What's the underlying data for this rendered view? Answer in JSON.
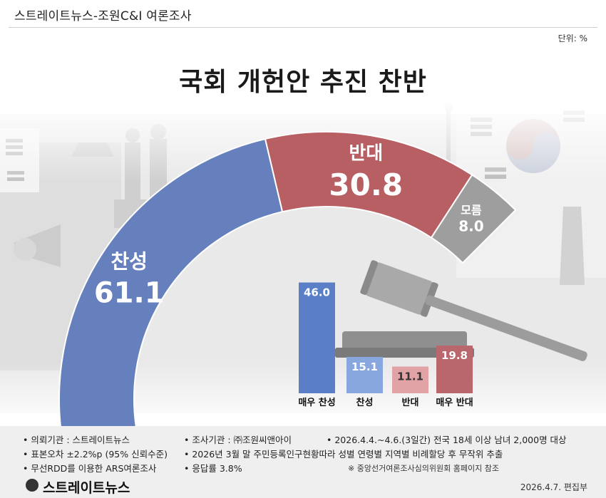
{
  "header": {
    "title": "스트레이트뉴스-조원C&I 여론조사"
  },
  "unit": "단위: %",
  "title": "국회 개헌안 추진 찬반",
  "chart_data": [
    {
      "type": "pie",
      "style": "semi-donut",
      "segments": [
        {
          "label": "찬성",
          "value": 61.1,
          "color": "#6680bd"
        },
        {
          "label": "반대",
          "value": 30.8,
          "color": "#b85f63"
        },
        {
          "label": "모름",
          "value": 8.0,
          "color": "#9e9e9e"
        }
      ],
      "value_labels": [
        "61.1",
        "30.8",
        "8.0"
      ]
    },
    {
      "type": "bar",
      "categories": [
        "매우 찬성",
        "찬성",
        "반대",
        "매우 반대"
      ],
      "values": [
        46.0,
        15.1,
        11.1,
        19.8
      ],
      "value_labels": [
        "46.0",
        "15.1",
        "11.1",
        "19.8"
      ],
      "colors": [
        "#5a7fc6",
        "#89a7df",
        "#e2a3a7",
        "#b9676c"
      ]
    }
  ],
  "footer": {
    "lines": [
      "• 의뢰기관 : 스트레이트뉴스",
      "• 조사기관 : ㈜조원씨앤아이",
      "• 2026.4.4.~4.6.(3일간) 전국 18세 이상 남녀 2,000명 대상",
      "• 표본오차 ±2.2%p (95% 신뢰수준)",
      "• 2026년 3월 말 주민등록인구현황따라 성별 연령별 지역별 비례할당 후 무작위 추출",
      "• 무선RDD를 이용한 ARS여론조사",
      "• 응답률 3.8%",
      "※ 중앙선거여론조사심의위원회 홈페이지 참조"
    ],
    "brand": "스트레이트뉴스",
    "date": "2026.4.7.  편집부"
  }
}
